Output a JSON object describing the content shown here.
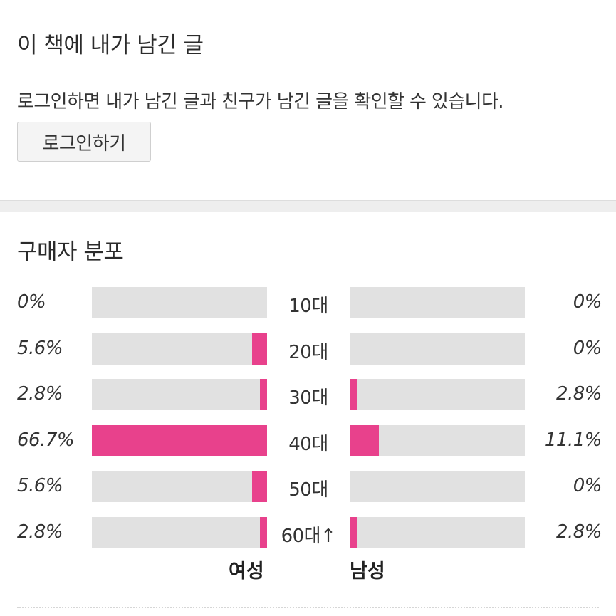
{
  "notes": {
    "title": "이 책에 내가 남긴 글",
    "message": "로그인하면 내가 남긴 글과 친구가 남긴 글을 확인할 수 있습니다.",
    "login_label": "로그인하기"
  },
  "distribution": {
    "title": "구매자 분포"
  },
  "chart_data": {
    "type": "bar",
    "orientation": "horizontal-butterfly",
    "categories": [
      "10대",
      "20대",
      "30대",
      "40대",
      "50대",
      "60대↑"
    ],
    "series": [
      {
        "name": "여성",
        "values": [
          0,
          5.6,
          2.8,
          66.7,
          5.6,
          2.8
        ],
        "labels": [
          "0%",
          "5.6%",
          "2.8%",
          "66.7%",
          "5.6%",
          "2.8%"
        ]
      },
      {
        "name": "남성",
        "values": [
          0,
          0,
          2.8,
          11.1,
          0,
          2.8
        ],
        "labels": [
          "0%",
          "0%",
          "2.8%",
          "11.1%",
          "0%",
          "2.8%"
        ]
      }
    ],
    "unit": "%",
    "scale_max": 66.7,
    "colors": {
      "fill": "#e8418c",
      "track": "#e1e1e1"
    }
  }
}
